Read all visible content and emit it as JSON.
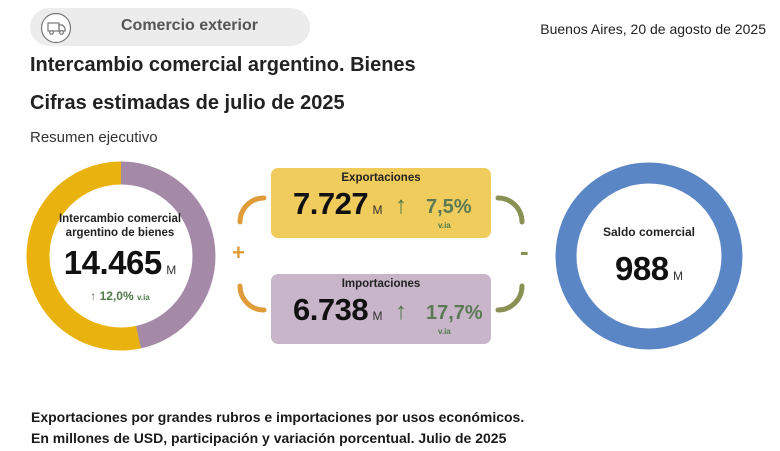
{
  "header": {
    "section_badge": "Comercio exterior",
    "date": "Buenos Aires, 20 de agosto de 2025",
    "title": "Intercambio comercial argentino. Bienes",
    "subtitle": "Cifras estimadas de julio de 2025",
    "section_label": "Resumen ejecutivo"
  },
  "exchange": {
    "label": "Intercambio comercial argentino de bienes",
    "value": "14.465",
    "unit": "M",
    "variation": "12,0%",
    "variation_suffix": "v.ia",
    "arrow": "↑",
    "exports_share": 0.534,
    "imports_share": 0.466,
    "exports_color": "#eab20e",
    "imports_color": "#a58aa8"
  },
  "exports": {
    "label": "Exportaciones",
    "value": "7.727",
    "unit": "M",
    "arrow": "↑",
    "variation": "7,5%",
    "variation_suffix": "v.ia",
    "color": "#f0cc5d"
  },
  "imports": {
    "label": "Importaciones",
    "value": "6.738",
    "unit": "M",
    "arrow": "↑",
    "variation": "17,7%",
    "variation_suffix": "v.ia",
    "color": "#c9b5c9"
  },
  "operators": {
    "plus": "+",
    "minus": "-"
  },
  "balance": {
    "label": "Saldo comercial",
    "value": "988",
    "unit": "M",
    "ring_color": "#5b86c5"
  },
  "footer": {
    "line1": "Exportaciones por grandes rubros e importaciones por usos económicos.",
    "line2": "En millones de USD, participación y variación porcentual. Julio de 2025"
  }
}
